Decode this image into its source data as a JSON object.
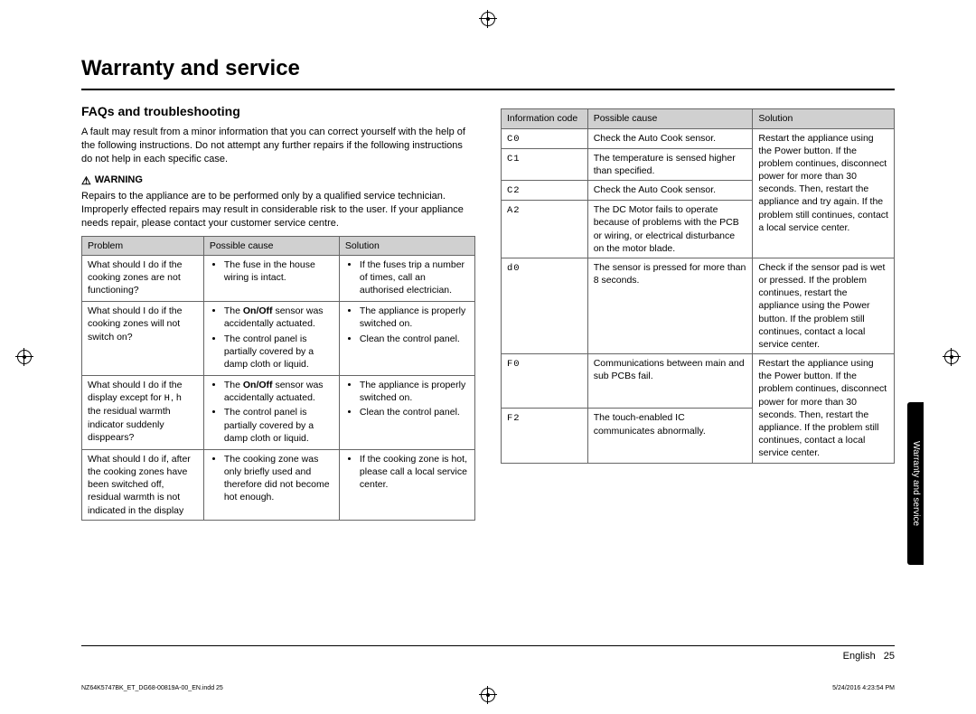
{
  "page": {
    "title": "Warranty and service",
    "subheading": "FAQs and troubleshooting",
    "intro": "A fault may result from a minor information that you can correct yourself with the help of the following instructions. Do not attempt any further repairs if the following instructions do not help in each specific case.",
    "warning_label": "WARNING",
    "warning_text": "Repairs to the appliance are to be performed only by a qualified service technician. Improperly effected repairs may result in considerable risk to the user. If your appliance needs repair, please contact your customer service centre.",
    "tab_label": "Warranty and service",
    "footer_lang": "English",
    "footer_page": "25",
    "imprint_left": "NZ64K5747BK_ET_DG68-00819A-00_EN.indd   25",
    "imprint_right": "5/24/2016   4:23:54 PM"
  },
  "table1": {
    "headers": [
      "Problem",
      "Possible cause",
      "Solution"
    ],
    "col_widths": [
      "31%",
      "34.5%",
      "34.5%"
    ],
    "rows": [
      {
        "problem": "What should I do if the cooking zones are not functioning?",
        "cause": [
          "The fuse in the house wiring is intact."
        ],
        "solution": [
          "If the fuses trip a number of times, call an authorised electrician."
        ]
      },
      {
        "problem_html": "What should I do if the cooking zones will not switch on?",
        "cause_html": [
          "The <b>On/Off</b> sensor was accidentally actuated.",
          "The control panel is partially covered by a damp cloth or liquid."
        ],
        "solution": [
          "The appliance is properly switched on.",
          "Clean the control panel."
        ]
      },
      {
        "problem_html": "What should I do if the display except for <span class='code-font'>H</span>, <span class='code-font'>h</span> the residual warmth indicator suddenly disppears?",
        "cause_html": [
          "The <b>On/Off</b> sensor was accidentally actuated.",
          "The control panel is partially covered by a damp cloth or liquid."
        ],
        "solution": [
          "The appliance is properly switched on.",
          "Clean the control panel."
        ]
      },
      {
        "problem": "What should I do if, after the cooking zones have been switched off, residual warmth is not indicated in the display",
        "cause": [
          "The cooking zone was only briefly used and therefore did not become hot enough."
        ],
        "solution": [
          "If the cooking zone is hot, please call a local service center."
        ]
      }
    ]
  },
  "table2": {
    "headers": [
      "Information code",
      "Possible cause",
      "Solution"
    ],
    "col_widths": [
      "22%",
      "42%",
      "36%"
    ],
    "rows": [
      {
        "code": "C0",
        "cause": "Check the Auto Cook sensor.",
        "sol_rowspan": 4,
        "solution": "Restart the appliance using the Power button. If the problem continues, disconnect power for more than 30 seconds. Then, restart the appliance and try again. If the problem still continues, contact a local service center."
      },
      {
        "code": "C1",
        "cause": "The temperature is sensed higher than specified."
      },
      {
        "code": "C2",
        "cause": "Check the Auto Cook sensor."
      },
      {
        "code": "A2",
        "cause": "The DC Motor fails to operate because of problems with the PCB or wiring, or electrical disturbance on the motor blade."
      },
      {
        "code": "d0",
        "cause": "The sensor is pressed for more than 8 seconds.",
        "solution": "Check if the sensor pad is wet or pressed. If the problem continues, restart the appliance using the Power button. If the problem still continues, contact a local service center."
      },
      {
        "code": "F0",
        "cause": "Communications between main and sub PCBs fail.",
        "sol_rowspan": 2,
        "solution": "Restart the appliance using the Power button. If the problem continues, disconnect power for more than 30 seconds. Then, restart the appliance. If the problem still continues, contact a local service center."
      },
      {
        "code": "F2",
        "cause": "The touch-enabled IC communicates abnormally."
      }
    ]
  },
  "colors": {
    "header_bg": "#d0d0d0",
    "border": "#666666",
    "text": "#000000",
    "tab_bg": "#000000",
    "tab_text": "#ffffff"
  }
}
